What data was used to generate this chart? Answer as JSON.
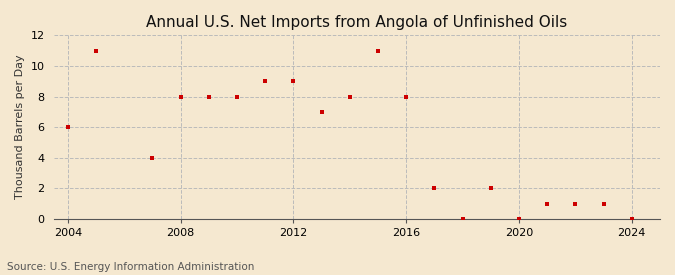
{
  "title": "Annual U.S. Net Imports from Angola of Unfinished Oils",
  "ylabel": "Thousand Barrels per Day",
  "source": "Source: U.S. Energy Information Administration",
  "background_color": "#f5e8d0",
  "marker_color": "#cc0000",
  "x_data": [
    2004,
    2005,
    2007,
    2008,
    2009,
    2010,
    2011,
    2012,
    2013,
    2014,
    2015,
    2016,
    2017,
    2018,
    2019,
    2020,
    2021,
    2022,
    2023,
    2024
  ],
  "y_data": [
    6,
    11,
    4,
    8,
    8,
    8,
    9,
    9,
    7,
    8,
    11,
    8,
    2,
    0,
    2,
    0,
    1,
    1,
    1,
    0
  ],
  "xlim": [
    2003.5,
    2025
  ],
  "ylim": [
    0,
    12
  ],
  "xticks": [
    2004,
    2008,
    2012,
    2016,
    2020,
    2024
  ],
  "yticks": [
    0,
    2,
    4,
    6,
    8,
    10,
    12
  ],
  "grid_color": "#bbbbbb",
  "title_fontsize": 11,
  "label_fontsize": 8,
  "tick_fontsize": 8,
  "source_fontsize": 7.5
}
